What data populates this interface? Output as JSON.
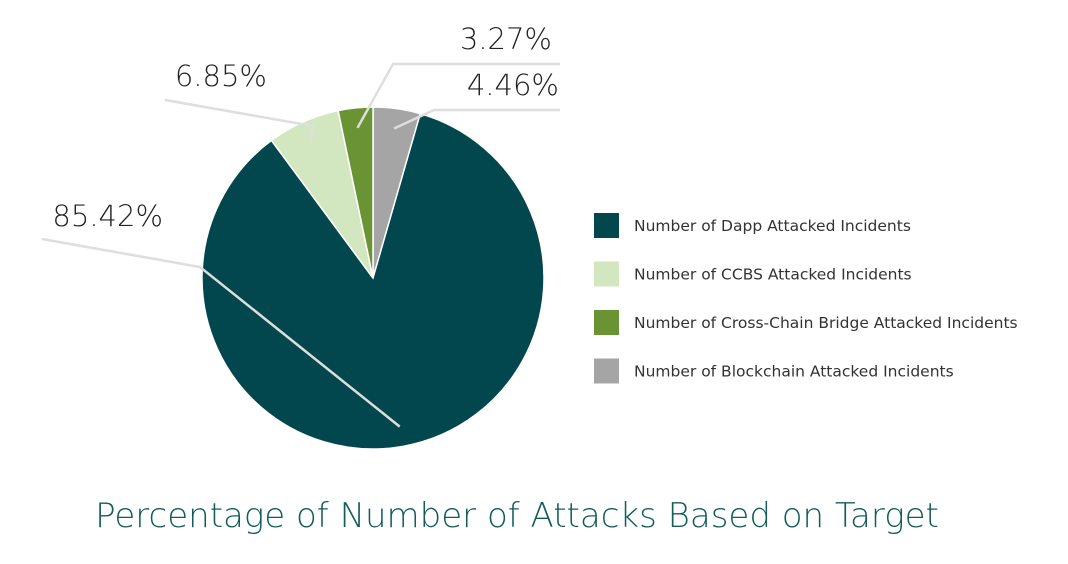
{
  "chart_data": {
    "type": "pie",
    "title": "Percentage of Number of Attacks Based on Target",
    "legend_position": "right",
    "slices": [
      {
        "name": "Number of Dapp Attacked Incidents",
        "value": 85.42,
        "label": "85.42%",
        "color": "#02474d"
      },
      {
        "name": "Number of CCBS Attacked Incidents",
        "value": 6.85,
        "label": "6.85%",
        "color": "#d2e6bf"
      },
      {
        "name": "Number of Cross-Chain Bridge Attacked Incidents",
        "value": 3.27,
        "label": "3.27%",
        "color": "#6a9434"
      },
      {
        "name": "Number of Blockchain Attacked Incidents",
        "value": 4.46,
        "label": "4.46%",
        "color": "#a5a5a5"
      }
    ]
  }
}
